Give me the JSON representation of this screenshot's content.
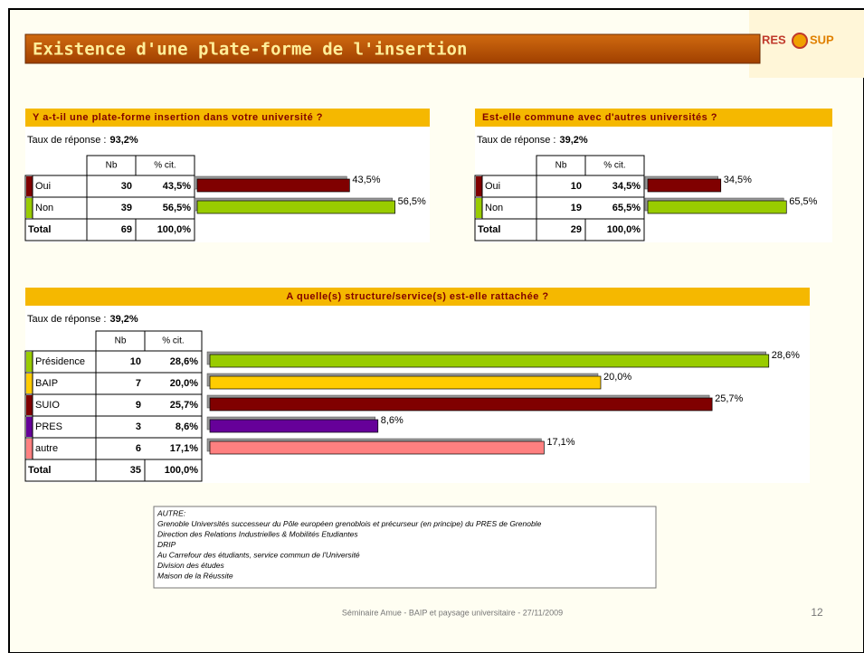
{
  "title": "Existence d'une plate-forme de l'insertion",
  "logo": {
    "left": "RES",
    "right": "SUP"
  },
  "table_headers": {
    "nb": "Nb",
    "pct": "% cit.",
    "total": "Total"
  },
  "response_label": "Taux de réponse :",
  "panels": [
    {
      "title": "Y a-t-il une plate-forme insertion dans votre université ?",
      "response_rate": "93,2%",
      "rows": [
        {
          "label": "Oui",
          "nb": 30,
          "pct": 43.5,
          "pct_label": "43,5%",
          "color": "#800000"
        },
        {
          "label": "Non",
          "nb": 39,
          "pct": 56.5,
          "pct_label": "56,5%",
          "color": "#99cc00"
        }
      ],
      "total": {
        "nb": 69,
        "pct_label": "100,0%"
      }
    },
    {
      "title": "Est-elle commune avec d'autres universités ?",
      "response_rate": "39,2%",
      "rows": [
        {
          "label": "Oui",
          "nb": 10,
          "pct": 34.5,
          "pct_label": "34,5%",
          "color": "#800000"
        },
        {
          "label": "Non",
          "nb": 19,
          "pct": 65.5,
          "pct_label": "65,5%",
          "color": "#99cc00"
        }
      ],
      "total": {
        "nb": 29,
        "pct_label": "100,0%"
      }
    },
    {
      "title": "A quelle(s) structure/service(s) est-elle rattachée ?",
      "response_rate": "39,2%",
      "rows": [
        {
          "label": "Présidence",
          "nb": 10,
          "pct": 28.6,
          "pct_label": "28,6%",
          "color": "#99cc00"
        },
        {
          "label": "BAIP",
          "nb": 7,
          "pct": 20.0,
          "pct_label": "20,0%",
          "color": "#ffcc00"
        },
        {
          "label": "SUIO",
          "nb": 9,
          "pct": 25.7,
          "pct_label": "25,7%",
          "color": "#800000"
        },
        {
          "label": "PRES",
          "nb": 3,
          "pct": 8.6,
          "pct_label": "8,6%",
          "color": "#660099"
        },
        {
          "label": "autre",
          "nb": 6,
          "pct": 17.1,
          "pct_label": "17,1%",
          "color": "#ff8080"
        }
      ],
      "total": {
        "nb": 35,
        "pct_label": "100,0%"
      }
    }
  ],
  "notes": [
    "AUTRE:",
    "Grenoble Universités successeur du Pôle européen grenoblois et précurseur (en principe) du PRES de Grenoble",
    "Direction des Relations Industrielles & Mobilités Etudiantes",
    "DRIP",
    "Au Carrefour des étudiants, service commun de l'Université",
    "Division des études",
    "Maison de la Réussite"
  ],
  "footer": "Séminaire Amue - BAIP et paysage universitaire - 27/11/2009",
  "page_number": "12"
}
